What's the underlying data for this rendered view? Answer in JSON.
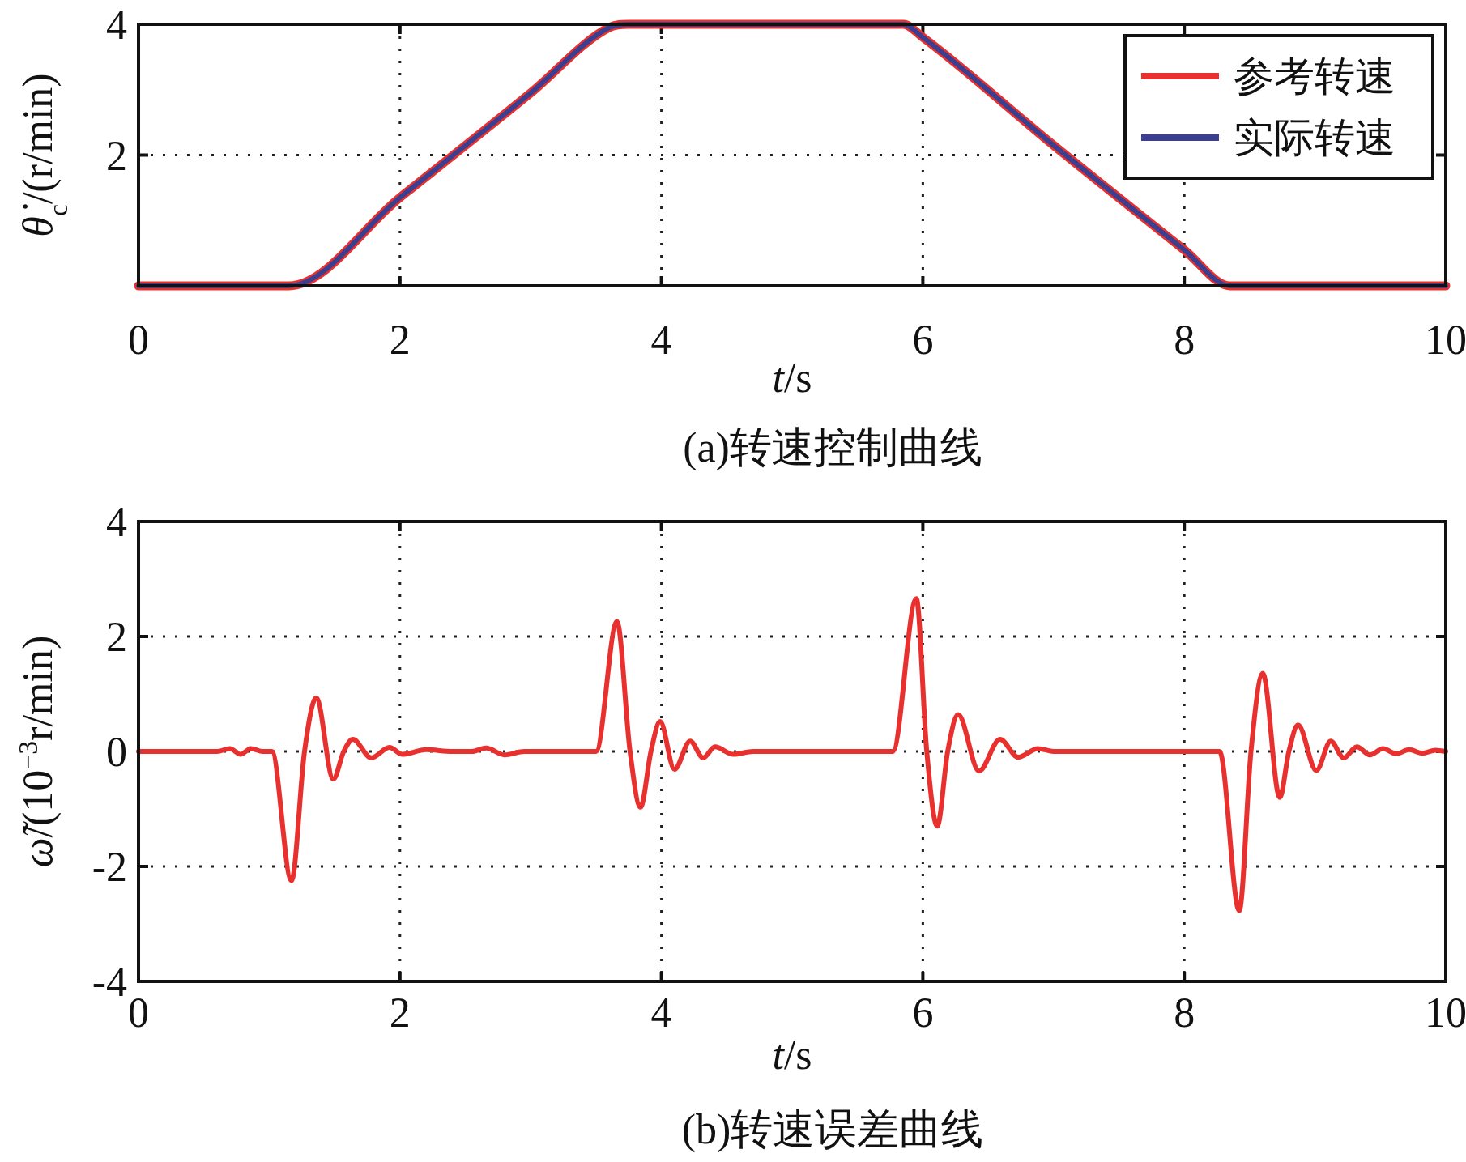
{
  "chart_data": [
    {
      "type": "line",
      "title": "(a)转速控制曲线",
      "xlabel": "*t*/s",
      "ylabel": "*θ̇*$_{c}$/(r/min)",
      "xlim": [
        0,
        10
      ],
      "ylim": [
        0,
        4
      ],
      "xticks": [
        0,
        2,
        4,
        6,
        8,
        10
      ],
      "yticks": [
        2,
        4
      ],
      "grid": true,
      "legend": "top right",
      "series": [
        {
          "name": "参考转速",
          "color": "#e8312f",
          "x": [
            0,
            1.15,
            2,
            3,
            3.6,
            3.75,
            5.85,
            6.0,
            7,
            8,
            8.35,
            10
          ],
          "values": [
            0,
            0,
            1.35,
            2.95,
            3.95,
            4,
            4,
            3.8,
            2.15,
            0.55,
            0,
            0
          ]
        },
        {
          "name": "实际转速",
          "color": "#3c3f8f",
          "x": [
            0,
            1.15,
            2,
            3,
            3.6,
            3.75,
            5.85,
            6.0,
            7,
            8,
            8.35,
            10
          ],
          "values": [
            0,
            0,
            1.35,
            2.95,
            3.95,
            4,
            4,
            3.8,
            2.15,
            0.55,
            0,
            0
          ]
        }
      ]
    },
    {
      "type": "line",
      "title": "(b)转速误差曲线",
      "xlabel": "*t*/s",
      "ylabel": "*ω̃*/(10$^{−3}$r/min)",
      "xlim": [
        0,
        10
      ],
      "ylim": [
        -4,
        4
      ],
      "xticks": [
        0,
        2,
        4,
        6,
        8,
        10
      ],
      "yticks": [
        -4,
        -2,
        0,
        2,
        4
      ],
      "grid": true,
      "series": [
        {
          "color": "#e8312f",
          "x": [
            0,
            0.6,
            0.7,
            0.78,
            0.86,
            0.95,
            1.02,
            1.17,
            1.27,
            1.36,
            1.49,
            1.57,
            1.64,
            1.78,
            1.92,
            2.02,
            2.2,
            2.4,
            2.55,
            2.66,
            2.8,
            2.95,
            3.5,
            3.66,
            3.76,
            3.84,
            3.92,
            3.99,
            4.1,
            4.22,
            4.32,
            4.41,
            4.55,
            4.7,
            5.77,
            5.95,
            6.03,
            6.11,
            6.19,
            6.27,
            6.43,
            6.59,
            6.73,
            6.88,
            7.0,
            8.27,
            8.42,
            8.51,
            8.6,
            8.73,
            8.8,
            8.87,
            9.01,
            9.12,
            9.22,
            9.32,
            9.42,
            9.52,
            9.62,
            9.72,
            9.82,
            9.92,
            10
          ],
          "values": [
            0,
            0,
            0.05,
            -0.05,
            0.05,
            0,
            0,
            -2.25,
            0,
            0.93,
            -0.48,
            0,
            0.21,
            -0.11,
            0.07,
            -0.05,
            0.03,
            0,
            0,
            0.06,
            -0.06,
            0,
            0,
            2.26,
            0,
            -0.97,
            0,
            0.52,
            -0.31,
            0.18,
            -0.11,
            0.08,
            -0.05,
            0,
            0,
            2.66,
            0,
            -1.3,
            0,
            0.64,
            -0.34,
            0.21,
            -0.1,
            0.05,
            0,
            0,
            -2.77,
            0,
            1.36,
            -0.8,
            0,
            0.46,
            -0.33,
            0.18,
            -0.11,
            0.08,
            -0.06,
            0.05,
            -0.04,
            0.03,
            -0.03,
            0.02,
            0
          ]
        }
      ]
    }
  ]
}
